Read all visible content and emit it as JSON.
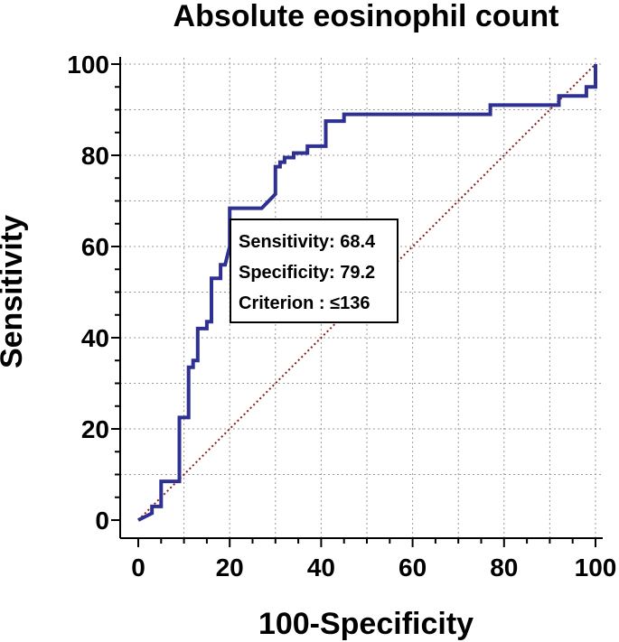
{
  "chart_data": {
    "type": "line",
    "title": "Absolute eosinophil count",
    "xlabel": "100-Specificity",
    "ylabel": "Sensitivity",
    "xlim": [
      0,
      100
    ],
    "ylim": [
      0,
      100
    ],
    "x_ticks": [
      "0",
      "20",
      "40",
      "60",
      "80",
      "100"
    ],
    "y_ticks": [
      "0",
      "20",
      "40",
      "60",
      "80",
      "100"
    ],
    "grid": true,
    "series": [
      {
        "name": "ROC curve",
        "color": "#2e3192",
        "x": [
          0,
          3,
          3,
          5,
          5,
          9,
          9,
          11,
          11,
          12,
          12,
          13,
          13,
          15,
          15,
          16,
          16,
          18,
          18,
          19,
          20,
          20,
          25,
          27,
          30,
          30,
          31,
          31,
          32,
          32,
          34,
          34,
          37,
          37,
          41,
          41,
          45,
          45,
          77,
          77,
          92,
          92,
          98,
          98,
          100,
          100
        ],
        "y": [
          0,
          1.5,
          3,
          3,
          8.5,
          8.5,
          22.5,
          22.5,
          33.5,
          33.5,
          35,
          35,
          42,
          42,
          43.5,
          43.5,
          53,
          53,
          56,
          56,
          60,
          68.4,
          68.4,
          68.4,
          71.5,
          77.5,
          77.5,
          78.5,
          78.5,
          79.5,
          79.5,
          80.5,
          80.5,
          82,
          82,
          87.5,
          87.5,
          89,
          89,
          91,
          91,
          93,
          93,
          95,
          95,
          100
        ]
      },
      {
        "name": "Reference line",
        "color": "#8b1a1a",
        "x": [
          0,
          100
        ],
        "y": [
          0,
          100
        ]
      }
    ],
    "annotation": {
      "lines": [
        "Sensitivity: 68.4",
        "Specificity: 79.2",
        "Criterion : ≤136"
      ]
    }
  }
}
